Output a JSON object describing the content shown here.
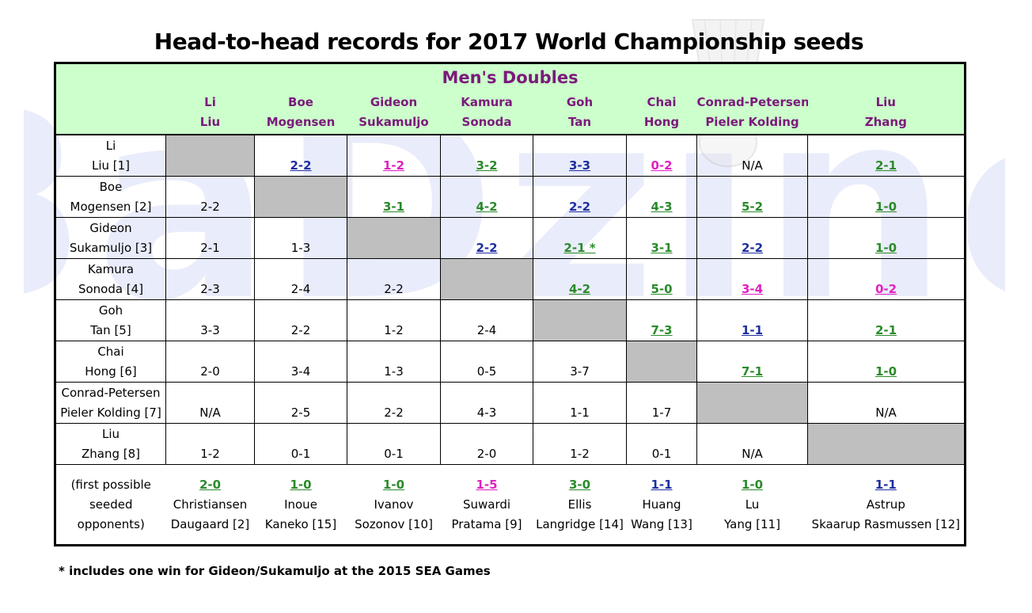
{
  "title": "Head-to-head records for 2017 World Championship seeds",
  "watermark": "BaDzine",
  "section_title": "Men's Doubles",
  "columns": [
    {
      "line1": "Li",
      "line2": "Liu"
    },
    {
      "line1": "Boe",
      "line2": "Mogensen"
    },
    {
      "line1": "Gideon",
      "line2": "Sukamuljo"
    },
    {
      "line1": "Kamura",
      "line2": "Sonoda"
    },
    {
      "line1": "Goh",
      "line2": "Tan"
    },
    {
      "line1": "Chai",
      "line2": "Hong"
    },
    {
      "line1": "Conrad-Petersen",
      "line2": "Pieler Kolding"
    },
    {
      "line1": "Liu",
      "line2": "Zhang"
    }
  ],
  "rows": [
    {
      "line1": "Li",
      "line2": "Liu [1]",
      "cells": [
        {
          "v": "",
          "c": "diag"
        },
        {
          "v": "2-2",
          "c": "blue"
        },
        {
          "v": "1-2",
          "c": "pink"
        },
        {
          "v": "3-2",
          "c": "green"
        },
        {
          "v": "3-3",
          "c": "blue"
        },
        {
          "v": "0-2",
          "c": "pink"
        },
        {
          "v": "N/A",
          "c": "plain"
        },
        {
          "v": "2-1",
          "c": "green"
        }
      ]
    },
    {
      "line1": "Boe",
      "line2": "Mogensen [2]",
      "cells": [
        {
          "v": "2-2",
          "c": "plain"
        },
        {
          "v": "",
          "c": "diag"
        },
        {
          "v": "3-1",
          "c": "green"
        },
        {
          "v": "4-2",
          "c": "green"
        },
        {
          "v": "2-2",
          "c": "blue"
        },
        {
          "v": "4-3",
          "c": "green"
        },
        {
          "v": "5-2",
          "c": "green"
        },
        {
          "v": "1-0",
          "c": "green"
        }
      ]
    },
    {
      "line1": "Gideon",
      "line2": "Sukamuljo [3]",
      "cells": [
        {
          "v": "2-1",
          "c": "plain"
        },
        {
          "v": "1-3",
          "c": "plain"
        },
        {
          "v": "",
          "c": "diag"
        },
        {
          "v": "2-2",
          "c": "blue"
        },
        {
          "v": "2-1 *",
          "c": "green"
        },
        {
          "v": "3-1",
          "c": "green"
        },
        {
          "v": "2-2",
          "c": "blue"
        },
        {
          "v": "1-0",
          "c": "green"
        }
      ]
    },
    {
      "line1": "Kamura",
      "line2": "Sonoda [4]",
      "cells": [
        {
          "v": "2-3",
          "c": "plain"
        },
        {
          "v": "2-4",
          "c": "plain"
        },
        {
          "v": "2-2",
          "c": "plain"
        },
        {
          "v": "",
          "c": "diag"
        },
        {
          "v": "4-2",
          "c": "green"
        },
        {
          "v": "5-0",
          "c": "green"
        },
        {
          "v": "3-4",
          "c": "pink"
        },
        {
          "v": "0-2",
          "c": "pink"
        }
      ]
    },
    {
      "line1": "Goh",
      "line2": "Tan [5]",
      "cells": [
        {
          "v": "3-3",
          "c": "plain"
        },
        {
          "v": "2-2",
          "c": "plain"
        },
        {
          "v": "1-2",
          "c": "plain"
        },
        {
          "v": "2-4",
          "c": "plain"
        },
        {
          "v": "",
          "c": "diag"
        },
        {
          "v": "7-3",
          "c": "green"
        },
        {
          "v": "1-1",
          "c": "blue"
        },
        {
          "v": "2-1",
          "c": "green"
        }
      ]
    },
    {
      "line1": "Chai",
      "line2": "Hong [6]",
      "cells": [
        {
          "v": "2-0",
          "c": "plain"
        },
        {
          "v": "3-4",
          "c": "plain"
        },
        {
          "v": "1-3",
          "c": "plain"
        },
        {
          "v": "0-5",
          "c": "plain"
        },
        {
          "v": "3-7",
          "c": "plain"
        },
        {
          "v": "",
          "c": "diag"
        },
        {
          "v": "7-1",
          "c": "green"
        },
        {
          "v": "1-0",
          "c": "green"
        }
      ]
    },
    {
      "line1": "Conrad-Petersen",
      "line2": "Pieler Kolding [7]",
      "cells": [
        {
          "v": "N/A",
          "c": "plain"
        },
        {
          "v": "2-5",
          "c": "plain"
        },
        {
          "v": "2-2",
          "c": "plain"
        },
        {
          "v": "4-3",
          "c": "plain"
        },
        {
          "v": "1-1",
          "c": "plain"
        },
        {
          "v": "1-7",
          "c": "plain"
        },
        {
          "v": "",
          "c": "diag"
        },
        {
          "v": "N/A",
          "c": "plain"
        }
      ]
    },
    {
      "line1": "Liu",
      "line2": "Zhang [8]",
      "cells": [
        {
          "v": "1-2",
          "c": "plain"
        },
        {
          "v": "0-1",
          "c": "plain"
        },
        {
          "v": "0-1",
          "c": "plain"
        },
        {
          "v": "2-0",
          "c": "plain"
        },
        {
          "v": "1-2",
          "c": "plain"
        },
        {
          "v": "0-1",
          "c": "plain"
        },
        {
          "v": "N/A",
          "c": "plain"
        },
        {
          "v": "",
          "c": "diag"
        }
      ]
    }
  ],
  "footer_label": [
    "(first possible",
    "seeded",
    "opponents)"
  ],
  "footer": [
    {
      "score": "2-0",
      "c": "green",
      "line1": "Christiansen",
      "line2": "Daugaard [2]"
    },
    {
      "score": "1-0",
      "c": "green",
      "line1": "Inoue",
      "line2": "Kaneko [15]"
    },
    {
      "score": "1-0",
      "c": "green",
      "line1": "Ivanov",
      "line2": "Sozonov [10]"
    },
    {
      "score": "1-5",
      "c": "pink",
      "line1": "Suwardi",
      "line2": "Pratama [9]"
    },
    {
      "score": "3-0",
      "c": "green",
      "line1": "Ellis",
      "line2": "Langridge [14]"
    },
    {
      "score": "1-1",
      "c": "blue",
      "line1": "Huang",
      "line2": "Wang [13]"
    },
    {
      "score": "1-0",
      "c": "green",
      "line1": "Lu",
      "line2": "Yang [11]"
    },
    {
      "score": "1-1",
      "c": "blue",
      "line1": "Astrup",
      "line2": "Skaarup Rasmussen [12]"
    }
  ],
  "footnote": "* includes one win for Gideon/Sukamuljo at the 2015 SEA Games",
  "colors": {
    "header_bg": "#ccffcc",
    "header_text": "#7b1a7b",
    "green": "#2b8a2b",
    "blue": "#1f2f9f",
    "pink": "#e020c0",
    "diag": "#bfbfbf"
  }
}
